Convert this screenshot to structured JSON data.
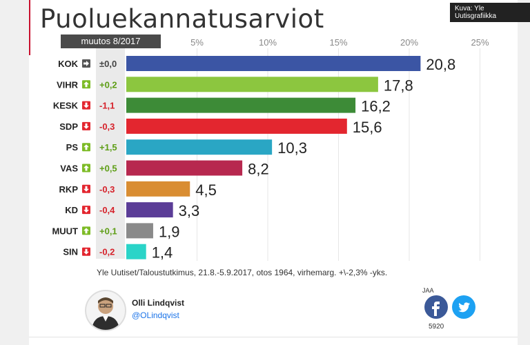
{
  "header": {
    "title": "Puoluekannatusarviot",
    "credit": "Kuva: Yle Uutisgrafiikka",
    "change_header": "muutos 8/2017"
  },
  "source_note": "Yle Uutiset/Taloustutkimus, 21.8.-5.9.2017, otos 1964, virhemarg. +\\-2,3% -yks.",
  "author": {
    "name": "Olli Lindqvist",
    "handle": "@OLindqvist"
  },
  "share": {
    "label": "JAA",
    "count": "5920"
  },
  "colors": {
    "up": "#7dbb26",
    "down": "#e3262f",
    "neutral": "#555555"
  },
  "chart_data": {
    "type": "bar",
    "orientation": "horizontal",
    "xlim": [
      0,
      25
    ],
    "x_ticks": [
      {
        "value": 5,
        "label": "5%"
      },
      {
        "value": 10,
        "label": "10%"
      },
      {
        "value": 15,
        "label": "15%"
      },
      {
        "value": 20,
        "label": "20%"
      },
      {
        "value": 25,
        "label": "25%"
      }
    ],
    "grid": true,
    "bars": [
      {
        "party": "KOK",
        "value": 20.8,
        "value_label": "20,8",
        "change": "±0,0",
        "direction": "neutral",
        "color": "#3b55a4"
      },
      {
        "party": "VIHR",
        "value": 17.8,
        "value_label": "17,8",
        "change": "+0,2",
        "direction": "up",
        "color": "#8cc63f"
      },
      {
        "party": "KESK",
        "value": 16.2,
        "value_label": "16,2",
        "change": "-1,1",
        "direction": "down",
        "color": "#3d8b37"
      },
      {
        "party": "SDP",
        "value": 15.6,
        "value_label": "15,6",
        "change": "-0,3",
        "direction": "down",
        "color": "#e3262f"
      },
      {
        "party": "PS",
        "value": 10.3,
        "value_label": "10,3",
        "change": "+1,5",
        "direction": "up",
        "color": "#2aa6c4"
      },
      {
        "party": "VAS",
        "value": 8.2,
        "value_label": "8,2",
        "change": "+0,5",
        "direction": "up",
        "color": "#b7284f"
      },
      {
        "party": "RKP",
        "value": 4.5,
        "value_label": "4,5",
        "change": "-0,3",
        "direction": "down",
        "color": "#d98d32"
      },
      {
        "party": "KD",
        "value": 3.3,
        "value_label": "3,3",
        "change": "-0,4",
        "direction": "down",
        "color": "#5b3d97"
      },
      {
        "party": "MUUT",
        "value": 1.9,
        "value_label": "1,9",
        "change": "+0,1",
        "direction": "up",
        "color": "#8a8a8a"
      },
      {
        "party": "SIN",
        "value": 1.4,
        "value_label": "1,4",
        "change": "-0,2",
        "direction": "down",
        "color": "#2ad4c8"
      }
    ]
  }
}
